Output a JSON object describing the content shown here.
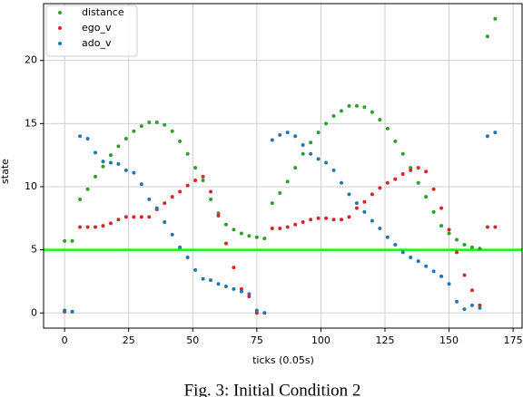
{
  "chart_data": {
    "type": "scatter",
    "xlabel": "ticks (0.05s)",
    "ylabel": "state",
    "caption": "Fig. 3: Initial Condition 2",
    "x": [
      0,
      3,
      6,
      9,
      12,
      15,
      18,
      21,
      24,
      27,
      30,
      33,
      36,
      39,
      42,
      45,
      48,
      51,
      54,
      57,
      60,
      63,
      66,
      69,
      72,
      75,
      78,
      81,
      84,
      87,
      90,
      93,
      96,
      99,
      102,
      105,
      108,
      111,
      114,
      117,
      120,
      123,
      126,
      129,
      132,
      135,
      138,
      141,
      144,
      147,
      150,
      153,
      156,
      159,
      162,
      165,
      168
    ],
    "series": [
      {
        "name": "distance",
        "color": "#2ca02c",
        "values": [
          5.7,
          5.7,
          9.0,
          9.8,
          10.8,
          11.6,
          12.5,
          13.2,
          13.8,
          14.4,
          14.8,
          15.1,
          15.1,
          14.9,
          14.4,
          13.6,
          12.6,
          11.5,
          10.5,
          9.0,
          7.9,
          7.0,
          6.6,
          6.3,
          6.1,
          6.0,
          5.9,
          8.7,
          9.5,
          10.4,
          11.5,
          12.6,
          13.5,
          14.3,
          15.0,
          15.6,
          16.0,
          16.4,
          16.4,
          16.3,
          15.9,
          15.3,
          14.6,
          13.6,
          12.6,
          11.5,
          10.3,
          9.2,
          8.0,
          6.9,
          6.3,
          5.8,
          5.4,
          5.2,
          5.1,
          21.9,
          23.3
        ]
      },
      {
        "name": "ego_v",
        "color": "#d62728",
        "values": [
          0.1,
          0.1,
          6.8,
          6.8,
          6.8,
          6.9,
          7.1,
          7.4,
          7.6,
          7.6,
          7.6,
          7.6,
          8.2,
          8.7,
          9.2,
          9.6,
          10.1,
          10.5,
          10.8,
          9.6,
          7.7,
          5.5,
          3.6,
          1.9,
          1.3,
          0,
          0,
          6.7,
          6.7,
          6.8,
          7.0,
          7.2,
          7.4,
          7.5,
          7.5,
          7.4,
          7.4,
          7.6,
          8.3,
          8.8,
          9.4,
          9.9,
          10.3,
          10.6,
          11.0,
          11.3,
          11.5,
          11.2,
          9.8,
          8.3,
          6.6,
          4.8,
          3.0,
          1.8,
          0.6,
          6.8,
          6.8
        ]
      },
      {
        "name": "ado_v",
        "color": "#1f77b4",
        "values": [
          0.2,
          0.1,
          14.0,
          13.8,
          12.7,
          12.0,
          11.9,
          11.8,
          11.3,
          11.1,
          10.2,
          9.0,
          8.3,
          7.2,
          6.2,
          5.2,
          4.4,
          3.4,
          2.7,
          2.6,
          2.3,
          2.1,
          1.9,
          1.7,
          1.5,
          0.2,
          0,
          13.7,
          14.1,
          14.3,
          14.0,
          13.3,
          12.6,
          12.2,
          11.9,
          11.3,
          10.3,
          9.4,
          8.7,
          8.0,
          7.3,
          6.7,
          6.0,
          5.4,
          4.8,
          4.4,
          4.1,
          3.7,
          3.3,
          2.9,
          2.3,
          0.9,
          0.3,
          0.6,
          0.4,
          14.0,
          14.3
        ]
      }
    ],
    "hlines": [
      {
        "value": 5,
        "color": "#00ff00"
      }
    ],
    "xlim": [
      -8.2,
      178.5
    ],
    "ylim": [
      -1.2,
      24.5
    ],
    "xticks": [
      0,
      25,
      50,
      75,
      100,
      125,
      150,
      175
    ],
    "yticks": [
      0,
      5,
      10,
      15,
      20
    ],
    "grid": true,
    "legend": "upper left"
  }
}
